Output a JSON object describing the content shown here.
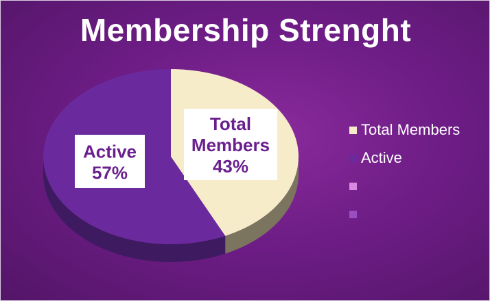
{
  "chart_data": {
    "type": "pie",
    "title": "Membership Strenght",
    "slices": [
      {
        "label": "Total Members",
        "value": 43,
        "data_label": [
          "Total",
          "Members",
          "43%"
        ],
        "color": "#f7ecc9",
        "side_color": "#7b7560"
      },
      {
        "label": "Active",
        "value": 57,
        "data_label": [
          "Active",
          "57%"
        ],
        "color": "#6a2a9e",
        "side_color": "#3e1a60"
      }
    ],
    "legend": {
      "placement": "right",
      "entries": [
        {
          "label": "Total Members",
          "color": "#f7ecc9"
        },
        {
          "label": "Active",
          "color": "#6a2a9e"
        },
        {
          "label": "",
          "color": "#d88ae0"
        },
        {
          "label": "",
          "color": "#9a4fc0"
        }
      ]
    },
    "style": {
      "three_d": true,
      "label_box_color": "#ffffff",
      "label_text_color": "#6a1f8e"
    }
  }
}
